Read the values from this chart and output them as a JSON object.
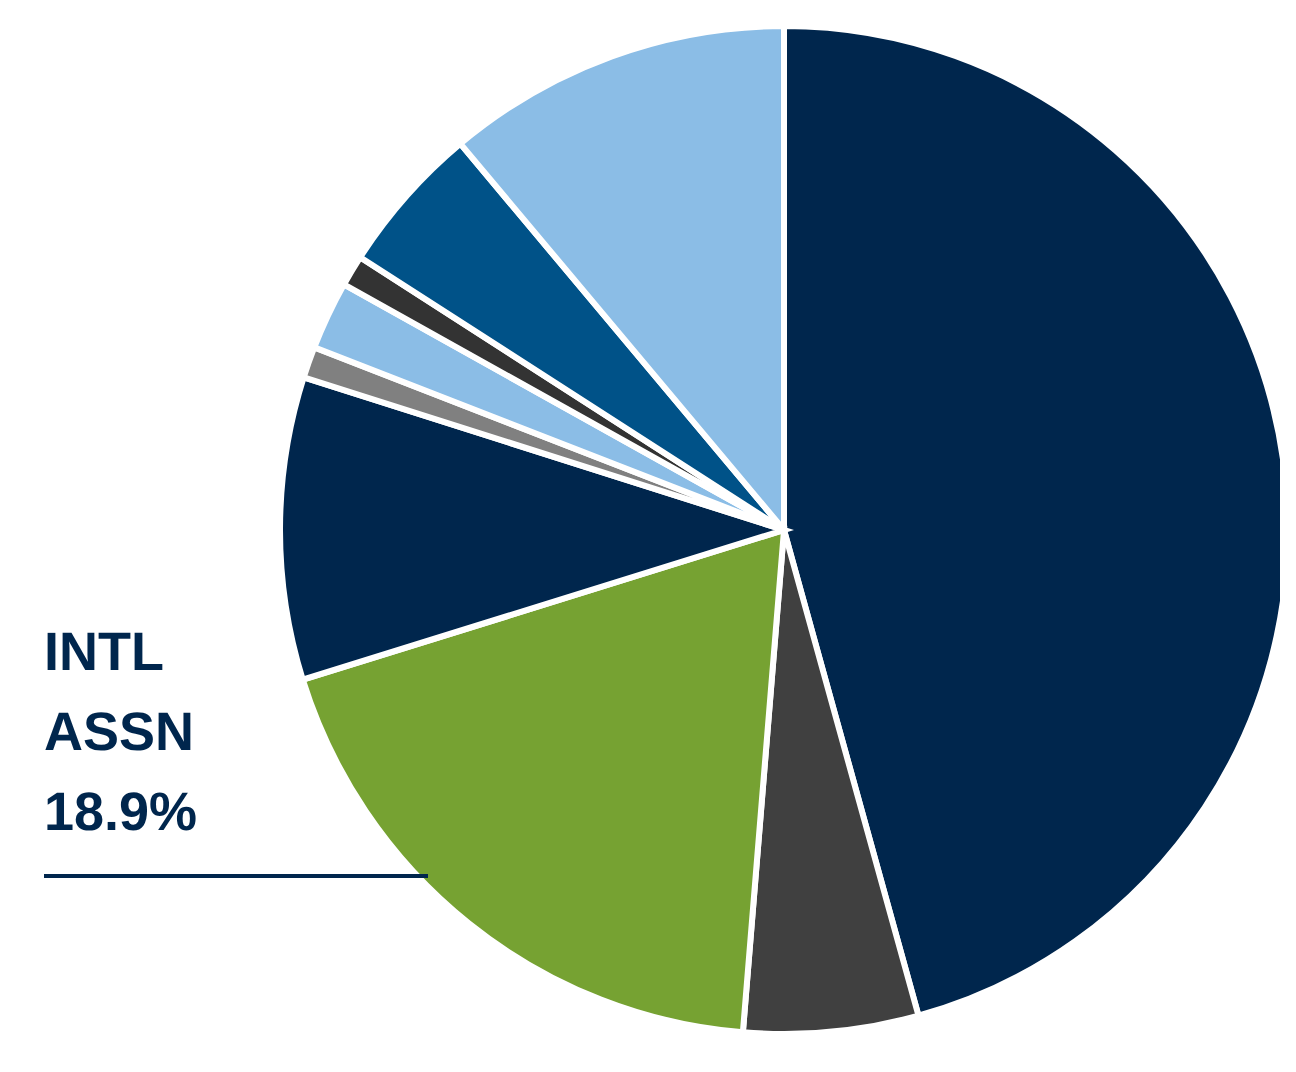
{
  "chart_data": {
    "type": "pie",
    "categories": [
      null,
      null,
      "INTL ASSN",
      null,
      null,
      null,
      null,
      null,
      null
    ],
    "values": [
      45.7,
      5.6,
      18.9,
      9.7,
      1.0,
      2.2,
      1.0,
      4.8,
      11.1
    ],
    "colors": [
      "#00264d",
      "#404040",
      "#76a232",
      "#00264d",
      "#808080",
      "#8bbde6",
      "#333333",
      "#005288",
      "#8bbde6"
    ],
    "value_labels": [
      null,
      null,
      "18.9%",
      null,
      null,
      null,
      null,
      null,
      null
    ],
    "legend": false
  }
}
